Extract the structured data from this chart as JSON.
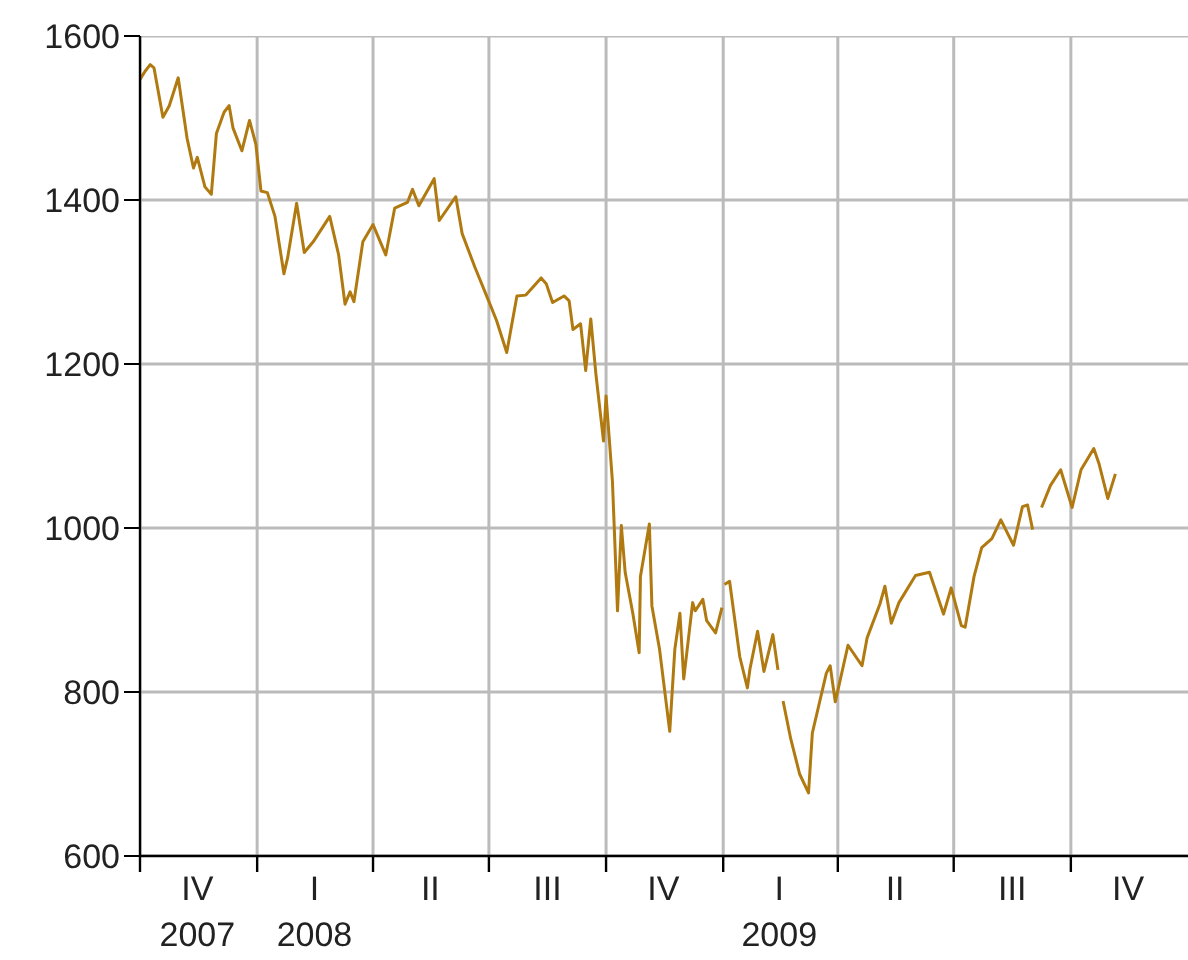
{
  "chart_data": {
    "type": "line",
    "x": [
      "2007-10-01",
      "2007-10-05",
      "2007-10-09",
      "2007-10-12",
      "2007-10-19",
      "2007-10-24",
      "2007-10-31",
      "2007-11-07",
      "2007-11-12",
      "2007-11-15",
      "2007-11-21",
      "2007-11-26",
      "2007-11-30",
      "2007-12-06",
      "2007-12-10",
      "2007-12-13",
      "2007-12-20",
      "2007-12-26",
      "2007-12-31",
      "2008-01-04",
      "2008-01-09",
      "2008-01-15",
      "2008-01-22",
      "2008-01-25",
      "2008-02-01",
      "2008-02-07",
      "2008-02-14",
      "2008-02-27",
      "2008-03-05",
      "2008-03-10",
      "2008-03-14",
      "2008-03-17",
      "2008-03-24",
      "2008-04-01",
      "2008-04-11",
      "2008-04-18",
      "2008-04-28",
      "2008-05-02",
      "2008-05-07",
      "2008-05-19",
      "2008-05-23",
      "2008-06-05",
      "2008-06-10",
      "2008-06-20",
      "2008-06-30",
      "2008-07-07",
      "2008-07-15",
      "2008-07-23",
      "2008-07-30",
      "2008-08-11",
      "2008-08-15",
      "2008-08-20",
      "2008-08-29",
      "2008-09-02",
      "2008-09-05",
      "2008-09-11",
      "2008-09-15",
      "2008-09-19",
      "2008-09-23",
      "2008-09-29",
      "2008-10-01",
      "2008-10-06",
      "2008-10-10",
      "2008-10-13",
      "2008-10-16",
      "2008-10-22",
      "2008-10-27",
      "2008-10-28",
      "2008-11-04",
      "2008-11-06",
      "2008-11-12",
      "2008-11-20",
      "2008-11-24",
      "2008-11-28",
      "2008-12-01",
      "2008-12-08",
      "2008-12-10",
      "2008-12-16",
      "2008-12-19",
      "2008-12-26",
      "2008-12-31",
      "2009-01-01",
      "2009-01-02",
      "2009-01-06",
      "2009-01-14",
      "2009-01-20",
      "2009-01-22",
      "2009-01-28",
      "2009-02-02",
      "2009-02-09",
      "2009-02-13",
      "2009-02-15",
      "2009-02-17",
      "2009-02-23",
      "2009-03-02",
      "2009-03-09",
      "2009-03-12",
      "2009-03-23",
      "2009-03-26",
      "2009-03-30",
      "2009-04-09",
      "2009-04-20",
      "2009-04-24",
      "2009-05-04",
      "2009-05-08",
      "2009-05-13",
      "2009-05-19",
      "2009-06-01",
      "2009-06-12",
      "2009-06-23",
      "2009-06-29",
      "2009-07-07",
      "2009-07-10",
      "2009-07-17",
      "2009-07-23",
      "2009-07-31",
      "2009-08-07",
      "2009-08-17",
      "2009-08-24",
      "2009-08-28",
      "2009-09-01",
      "2009-09-04",
      "2009-09-08",
      "2009-09-15",
      "2009-09-23",
      "2009-10-02",
      "2009-10-09",
      "2009-10-19",
      "2009-10-23",
      "2009-10-30",
      "2009-11-05"
    ],
    "series": [
      {
        "color": "#b07a10",
        "values": [
          1547,
          1557,
          1565,
          1561,
          1501,
          1515,
          1549,
          1475,
          1439,
          1452,
          1416,
          1407,
          1481,
          1507,
          1515,
          1488,
          1460,
          1497,
          1468,
          1411,
          1409,
          1380,
          1310,
          1330,
          1396,
          1336,
          1349,
          1380,
          1333,
          1273,
          1288,
          1276,
          1349,
          1370,
          1333,
          1390,
          1397,
          1413,
          1393,
          1426,
          1375,
          1404,
          1359,
          1318,
          1280,
          1253,
          1214,
          1283,
          1284,
          1305,
          1298,
          1275,
          1283,
          1277,
          1242,
          1249,
          1192,
          1255,
          1188,
          1106,
          1161,
          1057,
          899,
          1003,
          946,
          896,
          848,
          941,
          1005,
          905,
          852,
          752,
          852,
          896,
          816,
          909,
          899,
          913,
          887,
          872,
          903,
          null,
          931,
          935,
          843,
          805,
          828,
          874,
          825,
          870,
          827,
          null,
          789,
          743,
          700,
          677,
          750,
          823,
          832,
          788,
          857,
          832,
          866,
          907,
          929,
          884,
          909,
          942,
          946,
          895,
          927,
          881,
          879,
          941,
          976,
          987,
          1010,
          979,
          1026,
          1028,
          998,
          null,
          1025,
          1052,
          1071,
          1025,
          1071,
          1097,
          1079,
          1036,
          1066
        ]
      }
    ],
    "xlim": [
      "2007-10-01",
      "2010-01-01"
    ],
    "xticks": [
      {
        "value": "2007-10-01",
        "label": null
      },
      {
        "value": "2007-11-15",
        "label": "IV\n2007"
      },
      {
        "value": "2008-01-01",
        "label": null
      },
      {
        "value": "2008-02-15",
        "label": "I\n2008"
      },
      {
        "value": "2008-04-01",
        "label": null
      },
      {
        "value": "2008-05-16",
        "label": "II"
      },
      {
        "value": "2008-07-01",
        "label": null
      },
      {
        "value": "2008-08-16",
        "label": "III"
      },
      {
        "value": "2008-10-01",
        "label": null
      },
      {
        "value": "2008-11-15",
        "label": "IV"
      },
      {
        "value": "2009-01-01",
        "label": null
      },
      {
        "value": "2009-02-14",
        "label": "I\n2009"
      },
      {
        "value": "2009-04-01",
        "label": null
      },
      {
        "value": "2009-05-16",
        "label": "II"
      },
      {
        "value": "2009-07-01",
        "label": null
      },
      {
        "value": "2009-08-16",
        "label": "III"
      },
      {
        "value": "2009-10-01",
        "label": null
      },
      {
        "value": "2009-11-15",
        "label": "IV"
      }
    ],
    "ylim": [
      600,
      1600
    ],
    "yticks": [
      600,
      800,
      1000,
      1200,
      1400,
      1600
    ],
    "grid": true,
    "line_style": "solid"
  }
}
